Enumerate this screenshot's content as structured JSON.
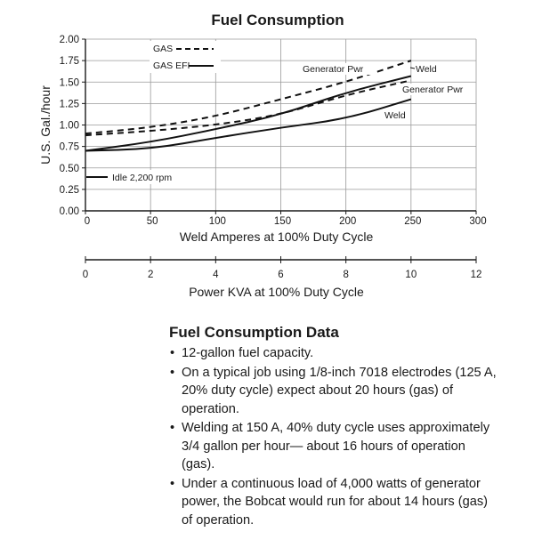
{
  "chart_data": {
    "type": "line",
    "title": "Fuel Consumption",
    "ylabel": "U.S. Gal./hour",
    "xlabel": "Weld Amperes at 100% Duty Cycle",
    "xlim": [
      0,
      300
    ],
    "ylim": [
      0,
      2.0
    ],
    "xticks": [
      "0",
      "50",
      "100",
      "150",
      "200",
      "250",
      "300"
    ],
    "yticks": [
      "0.00",
      "0.25",
      "0.50",
      "0.75",
      "1.00",
      "1.25",
      "1.50",
      "1.75",
      "2.00"
    ],
    "x2label": "Power KVA at 100% Duty Cycle",
    "x2lim": [
      0,
      12
    ],
    "x2ticks": [
      "0",
      "2",
      "4",
      "6",
      "8",
      "10",
      "12"
    ],
    "legend": [
      {
        "label": "GAS",
        "style": "dashed"
      },
      {
        "label": "GAS EFI",
        "style": "solid"
      }
    ],
    "idle_label": "Idle 2,200 rpm",
    "annotations": [
      "Generator Pwr",
      "Weld",
      "Generator Pwr",
      "Weld"
    ],
    "series": [
      {
        "style": "dashed",
        "x": [
          0,
          50,
          100,
          150,
          200,
          250
        ],
        "y": [
          0.9,
          0.97,
          1.1,
          1.3,
          1.5,
          1.75
        ]
      },
      {
        "style": "dashed",
        "x": [
          0,
          50,
          100,
          150,
          200,
          250
        ],
        "y": [
          0.88,
          0.93,
          1.0,
          1.12,
          1.35,
          1.52
        ]
      },
      {
        "style": "solid",
        "x": [
          0,
          50,
          100,
          150,
          200,
          250
        ],
        "y": [
          0.7,
          0.8,
          0.95,
          1.12,
          1.38,
          1.57
        ]
      },
      {
        "style": "solid",
        "x": [
          0,
          50,
          100,
          150,
          200,
          250
        ],
        "y": [
          0.7,
          0.72,
          0.85,
          0.97,
          1.07,
          1.3
        ]
      }
    ]
  },
  "info": {
    "heading": "Fuel Consumption Data",
    "items": [
      "12-gallon fuel capacity.",
      "On a typical job using 1/8-inch 7018 electrodes (125 A, 20% duty cycle) expect about 20 hours (gas) of operation.",
      "Welding at 150 A, 40% duty cycle uses approximately 3/4 gallon per hour— about 16 hours of operation (gas).",
      "Under a continuous load of 4,000 watts of generator power, the Bobcat would run for about 14 hours (gas) of operation."
    ]
  }
}
